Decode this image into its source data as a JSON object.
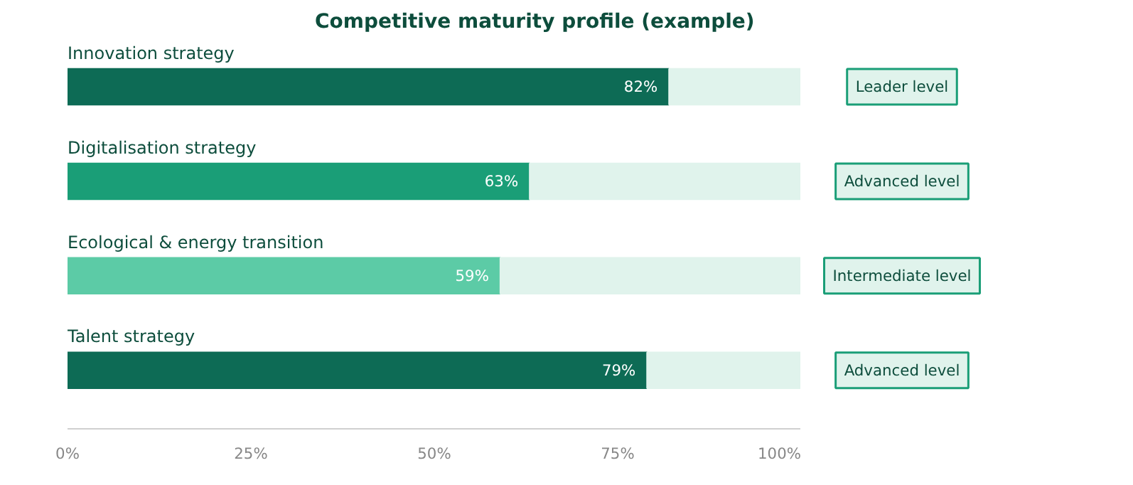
{
  "chart_data": {
    "type": "bar",
    "orientation": "horizontal",
    "stacked": true,
    "title": "Competitive maturity profile (example)",
    "categories": [
      "Innovation strategy",
      "Digitalisation strategy",
      "Ecological & energy transition",
      "Talent strategy"
    ],
    "series": [
      {
        "colors": [
          "#0d6b55",
          "#1a9e77",
          "#5ccba6",
          "#0d6b55"
        ],
        "values": [
          82,
          63,
          59,
          79
        ],
        "value_labels": [
          "82%",
          "63%",
          "59%",
          "79%"
        ]
      },
      {
        "color": "#e0f3ec",
        "values": [
          18,
          37,
          41,
          21
        ]
      }
    ],
    "xlim": [
      0,
      100
    ],
    "xticks": [
      {
        "value": 0,
        "label": "0%"
      },
      {
        "value": 25,
        "label": "25%"
      },
      {
        "value": 50,
        "label": "50%"
      },
      {
        "value": 75,
        "label": "75%"
      },
      {
        "value": 100,
        "label": "100%"
      }
    ],
    "annotations": [
      "Leader level",
      "Advanced level",
      "Intermediate level",
      "Advanced level"
    ],
    "grid": false
  }
}
